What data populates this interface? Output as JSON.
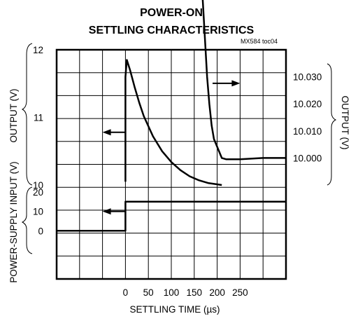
{
  "chart_data": {
    "type": "line",
    "title_line1": "POWER-ON",
    "title_line2": "SETTLING CHARACTERISTICS",
    "note": "MX584 toc04",
    "xlabel": "SETTLING TIME (µs)",
    "x_ticks": [
      "0",
      "50",
      "100",
      "150",
      "200",
      "250"
    ],
    "x_tick_values": [
      0,
      50,
      100,
      150,
      200,
      250
    ],
    "xlim": [
      -150,
      350
    ],
    "grid": true,
    "output_left": {
      "label": "OUTPUT (V)",
      "ticks": [
        "12",
        "11",
        "10"
      ],
      "tick_values": [
        12,
        11,
        10
      ],
      "ylim": [
        10,
        12
      ]
    },
    "output_right": {
      "label": "OUTPUT (V)",
      "ticks": [
        "10.030",
        "10.020",
        "10.010",
        "10.000"
      ],
      "tick_values": [
        10.03,
        10.02,
        10.01,
        10.0
      ],
      "ylim": [
        9.99,
        10.04
      ]
    },
    "supply": {
      "label": "POWER-SUPPLY INPUT (V)",
      "ticks": [
        "20",
        "10",
        "0"
      ],
      "tick_values": [
        20,
        10,
        0
      ],
      "ylim": [
        -10,
        20
      ]
    },
    "series": [
      {
        "axis": "output_left",
        "x": [
          0,
          0,
          3,
          10,
          20,
          30,
          40,
          60,
          80,
          100,
          120,
          140,
          160,
          180,
          200,
          210
        ],
        "y": [
          10.05,
          11.6,
          11.85,
          11.7,
          11.45,
          11.22,
          11.02,
          10.72,
          10.5,
          10.34,
          10.22,
          10.13,
          10.07,
          10.03,
          10.01,
          10.0
        ]
      },
      {
        "axis": "output_right",
        "x": [
          168,
          173,
          178,
          183,
          188,
          193,
          210,
          220,
          250,
          300,
          350
        ],
        "y": [
          10.06,
          10.045,
          10.03,
          10.02,
          10.012,
          10.007,
          10.0,
          9.9995,
          9.9995,
          10.0,
          10.0
        ]
      },
      {
        "axis": "supply",
        "x": [
          -150,
          0,
          0,
          350
        ],
        "y": [
          0,
          0,
          15,
          15
        ]
      }
    ],
    "arrows": [
      {
        "axis": "output_left",
        "x_from": 0,
        "x_to": -50,
        "y": 10.78
      },
      {
        "axis": "output_right",
        "x_from": 190,
        "x_to": 250,
        "y": 10.0276
      },
      {
        "axis": "supply",
        "x_from": 0,
        "x_to": -50,
        "y": 10
      }
    ]
  }
}
